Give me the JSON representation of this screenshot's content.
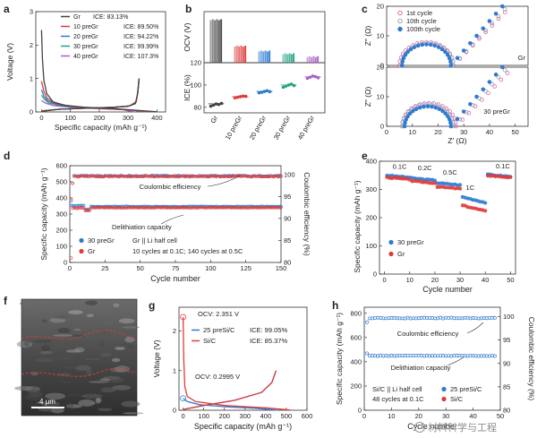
{
  "panels": {
    "a": {
      "label": "a",
      "chart_data": {
        "type": "line",
        "xlabel": "Specific capacity (mAh g⁻¹)",
        "ylabel": "Voltage (V)",
        "xlim": [
          -20,
          430
        ],
        "ylim": [
          0,
          3
        ],
        "xticks": [
          0,
          100,
          200,
          300,
          400
        ],
        "yticks": [
          0,
          1,
          2,
          3
        ],
        "legend": "top-right",
        "series": [
          {
            "name": "Gr",
            "ice": "ICE: 83.13%",
            "color": "#444444",
            "discharge": [
              [
                0,
                2.45
              ],
              [
                3,
                1.6
              ],
              [
                8,
                0.95
              ],
              [
                18,
                0.55
              ],
              [
                40,
                0.3
              ],
              [
                80,
                0.2
              ],
              [
                150,
                0.14
              ],
              [
                250,
                0.1
              ],
              [
                330,
                0.05
              ],
              [
                400,
                0.005
              ]
            ],
            "charge": [
              [
                0,
                0.02
              ],
              [
                60,
                0.08
              ],
              [
                150,
                0.11
              ],
              [
                250,
                0.14
              ],
              [
                300,
                0.17
              ],
              [
                325,
                0.25
              ],
              [
                332,
                0.5
              ],
              [
                336,
                0.8
              ],
              [
                338,
                1.0
              ]
            ]
          },
          {
            "name": "10 preGr",
            "ice": "ICE: 89.50%",
            "color": "#e03a3a",
            "discharge": [
              [
                0,
                0.92
              ],
              [
                8,
                0.62
              ],
              [
                20,
                0.4
              ],
              [
                50,
                0.25
              ],
              [
                120,
                0.15
              ],
              [
                220,
                0.1
              ],
              [
                320,
                0.05
              ],
              [
                370,
                0.005
              ]
            ],
            "charge": [
              [
                0,
                0.03
              ],
              [
                60,
                0.08
              ],
              [
                150,
                0.11
              ],
              [
                250,
                0.14
              ],
              [
                305,
                0.18
              ],
              [
                328,
                0.3
              ],
              [
                334,
                0.6
              ],
              [
                338,
                1.0
              ]
            ]
          },
          {
            "name": "20 preGr",
            "ice": "ICE: 94.22%",
            "color": "#2f7bd0",
            "discharge": [
              [
                0,
                0.66
              ],
              [
                8,
                0.48
              ],
              [
                22,
                0.33
              ],
              [
                60,
                0.21
              ],
              [
                140,
                0.14
              ],
              [
                240,
                0.1
              ],
              [
                320,
                0.05
              ],
              [
                360,
                0.005
              ]
            ],
            "charge": [
              [
                0,
                0.03
              ],
              [
                60,
                0.08
              ],
              [
                150,
                0.11
              ],
              [
                250,
                0.14
              ],
              [
                305,
                0.18
              ],
              [
                328,
                0.3
              ],
              [
                334,
                0.6
              ],
              [
                338,
                1.0
              ]
            ]
          },
          {
            "name": "30 preGr",
            "ice": "ICE: 99.99%",
            "color": "#22a083",
            "discharge": [
              [
                0,
                0.5
              ],
              [
                10,
                0.38
              ],
              [
                25,
                0.27
              ],
              [
                70,
                0.18
              ],
              [
                150,
                0.13
              ],
              [
                250,
                0.09
              ],
              [
                320,
                0.05
              ],
              [
                345,
                0.005
              ]
            ],
            "charge": [
              [
                0,
                0.03
              ],
              [
                60,
                0.08
              ],
              [
                150,
                0.11
              ],
              [
                250,
                0.14
              ],
              [
                305,
                0.18
              ],
              [
                328,
                0.3
              ],
              [
                334,
                0.6
              ],
              [
                338,
                1.0
              ]
            ]
          },
          {
            "name": "40 preGr",
            "ice": "ICE: 107.3%",
            "color": "#a85fc8",
            "discharge": [
              [
                0,
                0.34
              ],
              [
                15,
                0.26
              ],
              [
                40,
                0.19
              ],
              [
                100,
                0.14
              ],
              [
                200,
                0.1
              ],
              [
                280,
                0.07
              ],
              [
                320,
                0.005
              ]
            ],
            "charge": [
              [
                0,
                0.03
              ],
              [
                60,
                0.08
              ],
              [
                150,
                0.11
              ],
              [
                250,
                0.14
              ],
              [
                305,
                0.18
              ],
              [
                328,
                0.3
              ],
              [
                334,
                0.6
              ],
              [
                338,
                1.0
              ]
            ]
          }
        ]
      }
    },
    "b": {
      "label": "b",
      "chart_data": {
        "type": "bar",
        "categories": [
          "Gr",
          "10 preGr",
          "20 preGr",
          "30 preGr",
          "40 preGr"
        ],
        "colors": [
          "#444444",
          "#e03a3a",
          "#2f7bd0",
          "#22a083",
          "#a85fc8"
        ],
        "top": {
          "ylabel": "OCV (V)",
          "ylim": [
            0,
            3
          ],
          "values": [
            2.5,
            0.95,
            0.66,
            0.5,
            0.33
          ]
        },
        "bottom": {
          "ylabel": "ICE (%)",
          "ylim": [
            75,
            120
          ],
          "yticks": [
            80,
            100,
            120
          ],
          "points": [
            [
              81,
              82,
              83,
              82.5,
              83.5
            ],
            [
              88.5,
              89,
              89.5,
              90,
              89.8
            ],
            [
              93,
              93.5,
              94.2,
              94.8,
              94
            ],
            [
              98,
              99,
              100,
              100.8,
              99.5
            ],
            [
              106,
              107,
              108,
              107.5,
              106.5
            ]
          ],
          "means": [
            83.13,
            89.5,
            94.22,
            99.99,
            107.3
          ]
        }
      }
    },
    "c": {
      "label": "c",
      "chart_data": {
        "type": "scatter",
        "xlabel": "Z′ (Ω)",
        "ylabel": "Z″ (Ω)",
        "xlim": [
          0,
          55
        ],
        "xticks": [
          0,
          10,
          20,
          30,
          40,
          50
        ],
        "top": {
          "tag": "Gr",
          "ylim": [
            0,
            20
          ],
          "yticks": [
            0,
            10,
            20
          ]
        },
        "bottom": {
          "tag": "30 preGr",
          "ylim": [
            0,
            20
          ],
          "yticks": [
            0,
            10,
            20
          ]
        },
        "series": [
          {
            "name": "1st cycle",
            "color": "#d76ab0"
          },
          {
            "name": "10th cycle",
            "color": "#9aa0a6"
          },
          {
            "name": "100th cycle",
            "color": "#2f7bd0"
          }
        ]
      }
    },
    "d": {
      "label": "d",
      "chart_data": {
        "type": "scatter",
        "xlabel": "Cycle number",
        "ylabel": "Specific capacity (mAh g⁻¹)",
        "y2label": "Coulombic efficiency (%)",
        "xlim": [
          0,
          150
        ],
        "xticks": [
          0,
          25,
          50,
          75,
          100,
          125,
          150
        ],
        "ylim": [
          0,
          600
        ],
        "yticks": [
          0,
          100,
          200,
          300,
          400,
          500,
          600
        ],
        "y2lim": [
          80,
          102
        ],
        "y2ticks": [
          80,
          85,
          90,
          95,
          100
        ],
        "annotations": {
          "ce": "Coulombic efficiency",
          "delith": "Delithiation capacity",
          "cell": "Gr || Li half cell",
          "protocol": "10 cycles at 0.1C; 140 cycles at 0.5C"
        },
        "series": [
          {
            "name": "30 preGr",
            "color": "#2f7bd0",
            "capacity_early": 350,
            "capacity_late": 345,
            "ce": 99.8
          },
          {
            "name": "Gr",
            "color": "#e03a3a",
            "capacity_early": 340,
            "capacity_late": 338,
            "ce": 99.7
          }
        ]
      }
    },
    "e": {
      "label": "e",
      "chart_data": {
        "type": "scatter",
        "xlabel": "Cycle number",
        "ylabel": "Specific capacity (mAh g⁻¹)",
        "xlim": [
          -2,
          52
        ],
        "xticks": [
          0,
          10,
          20,
          30,
          40,
          50
        ],
        "ylim": [
          0,
          400
        ],
        "yticks": [
          0,
          100,
          200,
          300,
          400
        ],
        "rates": [
          "0.1C",
          "0.2C",
          "0.5C",
          "1C",
          "0.1C"
        ],
        "series": [
          {
            "name": "30 preGr",
            "color": "#2f7bd0",
            "blocks": [
              345,
              335,
              318,
              262,
              348
            ]
          },
          {
            "name": "Gr",
            "color": "#e03a3a",
            "blocks": [
              338,
              325,
              305,
              232,
              345
            ]
          }
        ]
      }
    },
    "f": {
      "label": "f",
      "scale_bar": "4 μm"
    },
    "g": {
      "label": "g",
      "chart_data": {
        "type": "line",
        "xlabel": "Specific capacity (mAh g⁻¹)",
        "ylabel": "Voltage (V)",
        "xlim": [
          -20,
          600
        ],
        "xticks": [
          0,
          100,
          200,
          300,
          400,
          500,
          600
        ],
        "ylim": [
          0,
          2.6
        ],
        "yticks": [
          0,
          1,
          2
        ],
        "annotations": {
          "ocv_high": "OCV: 2.351 V",
          "ocv_low": "OCV: 0.2995 V"
        },
        "series": [
          {
            "name": "25 preSi/C",
            "ice": "ICE: 99.05%",
            "color": "#2f7bd0",
            "discharge": [
              [
                0,
                0.3
              ],
              [
                20,
                0.22
              ],
              [
                80,
                0.14
              ],
              [
                200,
                0.09
              ],
              [
                350,
                0.05
              ],
              [
                450,
                0.005
              ]
            ],
            "charge": [
              [
                0,
                0.02
              ],
              [
                100,
                0.12
              ],
              [
                250,
                0.25
              ],
              [
                380,
                0.45
              ],
              [
                430,
                0.7
              ],
              [
                450,
                1.0
              ]
            ]
          },
          {
            "name": "Si/C",
            "ice": "ICE: 85.37%",
            "color": "#e03a3a",
            "discharge": [
              [
                0,
                2.351
              ],
              [
                3,
                1.3
              ],
              [
                8,
                0.6
              ],
              [
                20,
                0.35
              ],
              [
                60,
                0.22
              ],
              [
                200,
                0.12
              ],
              [
                400,
                0.06
              ],
              [
                520,
                0.005
              ]
            ],
            "charge": [
              [
                0,
                0.02
              ],
              [
                100,
                0.12
              ],
              [
                250,
                0.25
              ],
              [
                380,
                0.45
              ],
              [
                430,
                0.7
              ],
              [
                450,
                1.0
              ]
            ]
          }
        ]
      }
    },
    "h": {
      "label": "h",
      "chart_data": {
        "type": "scatter",
        "xlabel": "Cycle number",
        "ylabel": "Specific capacity (mAh g⁻¹)",
        "y2label": "Coulombic efficiency (%)",
        "xlim": [
          0,
          50
        ],
        "xticks": [
          0,
          10,
          20,
          30,
          40,
          50
        ],
        "ylim": [
          0,
          850
        ],
        "yticks": [
          0,
          200,
          400,
          600,
          800
        ],
        "y2lim": [
          80,
          102
        ],
        "y2ticks": [
          80,
          85,
          90,
          95,
          100
        ],
        "annotations": {
          "ce": "Coulombic efficiency",
          "delith": "Delithiation capacity",
          "cell": "Si/C || Li half cell",
          "protocol": "48 cycles at 0.1C"
        },
        "series": [
          {
            "name": "25 preSi/C",
            "color": "#2f7bd0",
            "capacity": 450,
            "ce": 99.8
          },
          {
            "name": "Si/C",
            "color": "#e03a3a"
          }
        ]
      }
    }
  },
  "watermark": "材料科学与工程"
}
